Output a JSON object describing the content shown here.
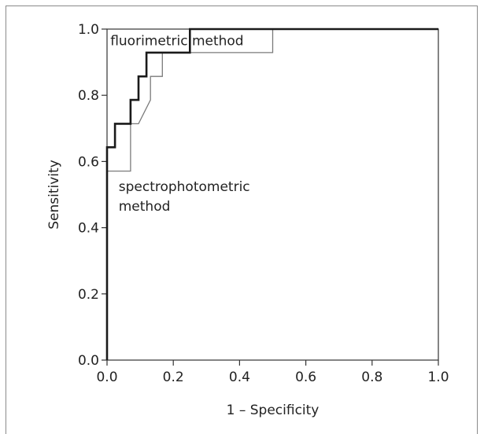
{
  "chart_data": {
    "type": "line",
    "title": "",
    "xlabel": "1 – Specificity",
    "ylabel": "Sensitivity",
    "xlim": [
      0.0,
      1.0
    ],
    "ylim": [
      0.0,
      1.0
    ],
    "x_ticks": [
      "0.0",
      "0.2",
      "0.4",
      "0.6",
      "0.8",
      "1.0"
    ],
    "y_ticks": [
      "0.0",
      "0.2",
      "0.4",
      "0.6",
      "0.8",
      "1.0"
    ],
    "grid": false,
    "series": [
      {
        "color": "#1a1a1a",
        "points": [
          [
            0.0,
            0.0
          ],
          [
            0.0,
            0.643
          ],
          [
            0.024,
            0.643
          ],
          [
            0.024,
            0.714
          ],
          [
            0.071,
            0.714
          ],
          [
            0.071,
            0.786
          ],
          [
            0.095,
            0.786
          ],
          [
            0.095,
            0.857
          ],
          [
            0.119,
            0.857
          ],
          [
            0.119,
            0.929
          ],
          [
            0.25,
            0.929
          ],
          [
            0.25,
            1.0
          ],
          [
            1.0,
            1.0
          ]
        ]
      },
      {
        "color": "#7a7a7a",
        "points": [
          [
            0.0,
            0.0
          ],
          [
            0.0,
            0.571
          ],
          [
            0.071,
            0.571
          ],
          [
            0.071,
            0.714
          ],
          [
            0.095,
            0.714
          ],
          [
            0.131,
            0.786
          ],
          [
            0.131,
            0.857
          ],
          [
            0.167,
            0.857
          ],
          [
            0.167,
            0.929
          ],
          [
            0.5,
            0.929
          ],
          [
            0.5,
            1.0
          ],
          [
            1.0,
            1.0
          ]
        ]
      }
    ],
    "annotations": [
      {
        "text": "fluorimetric method",
        "x": 0.01,
        "y": 0.965
      },
      {
        "text": "spectrophotometric",
        "x": 0.035,
        "y": 0.525
      },
      {
        "text": "method",
        "x": 0.035,
        "y": 0.465
      }
    ]
  }
}
